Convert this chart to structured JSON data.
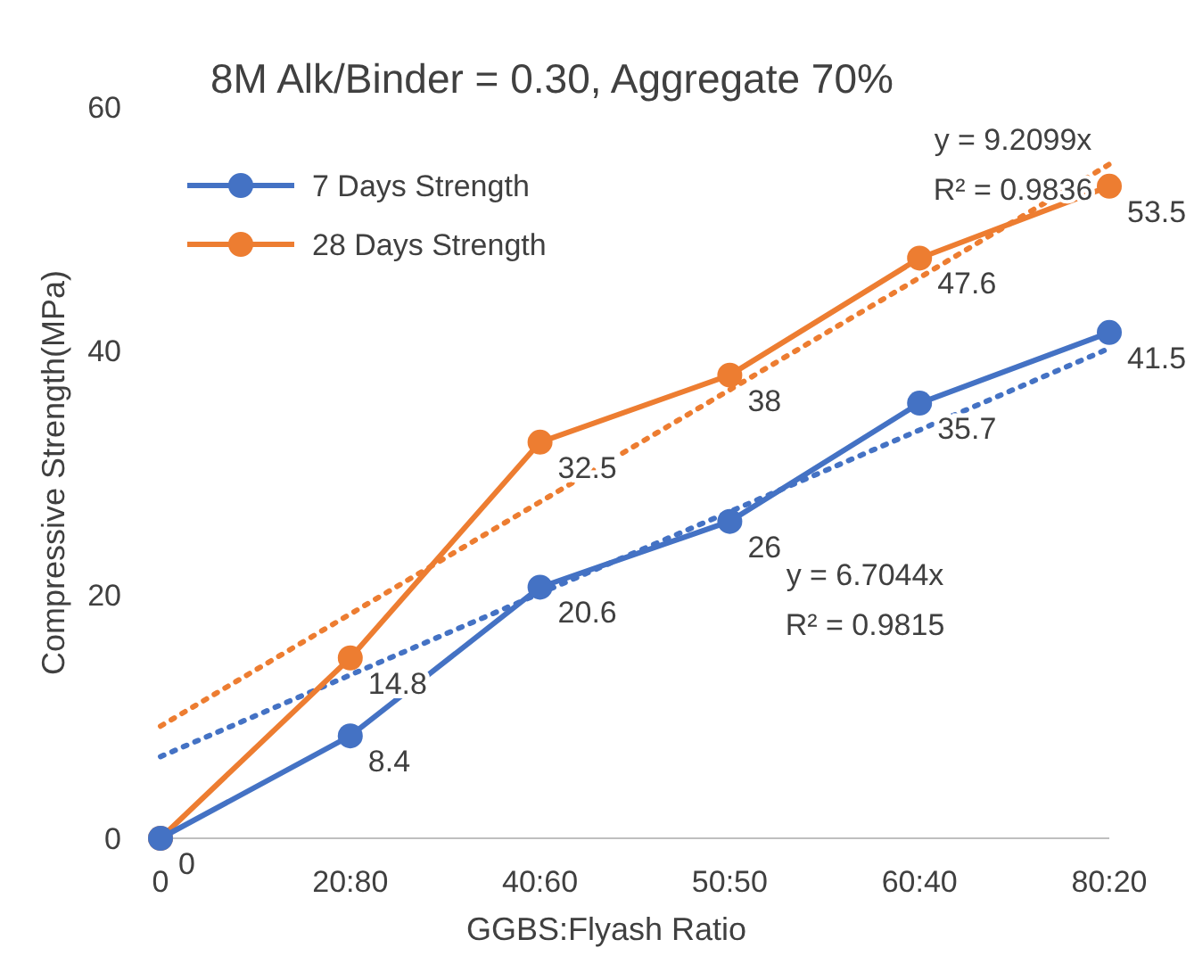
{
  "chart_data": {
    "type": "line",
    "title": "8M Alk/Binder = 0.30, Aggregate 70%",
    "xlabel": "GGBS:Flyash Ratio",
    "ylabel": "Compressive Strength(MPa)",
    "categories": [
      "0",
      "20:80",
      "40:60",
      "50:50",
      "60:40",
      "80:20"
    ],
    "ylim": [
      0,
      60
    ],
    "yticks": [
      0,
      20,
      40,
      60
    ],
    "grid": false,
    "legend": "top left",
    "marker": "circle",
    "line_style": "solid",
    "series": [
      {
        "name": "7 Days Strength",
        "color": "#4472c4",
        "values": [
          0,
          8.4,
          20.6,
          26,
          35.7,
          41.5
        ],
        "value_labels": [
          null,
          "8.4",
          "20.6",
          "26",
          "35.7",
          "41.5"
        ]
      },
      {
        "name": "28 Days Strength",
        "color": "#ed7d31",
        "values": [
          0,
          14.8,
          32.5,
          38,
          47.6,
          53.5
        ],
        "value_labels": [
          "0",
          "14.8",
          "32.5",
          "38",
          "47.6",
          "53.5"
        ]
      },
      {
        "color": "#ed7d31",
        "values": [
          9.2,
          18.4,
          27.6,
          36.8,
          46,
          55.3
        ],
        "line_style": "dotted",
        "marker": "none"
      },
      {
        "color": "#4472c4",
        "values": [
          6.7,
          13.4,
          20.1,
          26.8,
          33.5,
          40.2
        ],
        "line_style": "dotted",
        "marker": "none"
      }
    ],
    "annotations": [
      "y = 9.2099x",
      "R² = 0.9836",
      "y = 6.7044x",
      "R² = 0.9815"
    ]
  }
}
